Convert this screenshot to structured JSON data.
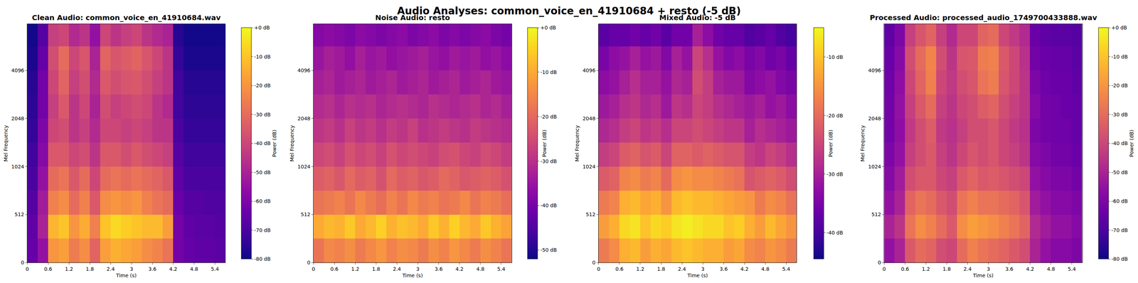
{
  "title": "Audio Analyses: common_voice_en_41910684 + resto (-5 dB)",
  "chart_data": [
    {
      "type": "heatmap",
      "title": "Clean Audio: common_voice_en_41910684.wav",
      "x_label": "Time (s)",
      "y_label": "Mel Frequency",
      "x": [
        0.15,
        0.45,
        0.75,
        1.05,
        1.35,
        1.65,
        1.95,
        2.25,
        2.55,
        2.85,
        3.15,
        3.45,
        3.75,
        4.05,
        4.35,
        4.65,
        4.95,
        5.25,
        5.55
      ],
      "y": [
        128,
        384,
        609,
        861,
        1218,
        1722,
        2435,
        3444,
        4871,
        6889
      ],
      "cells": [
        [
          -65,
          -55,
          -20,
          -18,
          -26,
          -22,
          -32,
          -18,
          -14,
          -16,
          -18,
          -22,
          -24,
          -28,
          -62,
          -65,
          -66,
          -66,
          -67
        ],
        [
          -66,
          -50,
          -13,
          -10,
          -20,
          -15,
          -25,
          -10,
          -6,
          -8,
          -10,
          -12,
          -12,
          -18,
          -62,
          -66,
          -67,
          -67,
          -68
        ],
        [
          -68,
          -52,
          -25,
          -22,
          -30,
          -25,
          -35,
          -22,
          -20,
          -22,
          -20,
          -25,
          -28,
          -30,
          -64,
          -68,
          -68,
          -69,
          -69
        ],
        [
          -70,
          -55,
          -30,
          -28,
          -35,
          -30,
          -40,
          -30,
          -28,
          -30,
          -28,
          -30,
          -32,
          -35,
          -66,
          -70,
          -70,
          -70,
          -70
        ],
        [
          -72,
          -58,
          -35,
          -35,
          -40,
          -38,
          -45,
          -35,
          -35,
          -38,
          -35,
          -38,
          -40,
          -42,
          -68,
          -72,
          -72,
          -72,
          -72
        ],
        [
          -74,
          -60,
          -40,
          -38,
          -45,
          -42,
          -48,
          -40,
          -40,
          -42,
          -40,
          -42,
          -45,
          -45,
          -70,
          -74,
          -74,
          -74,
          -74
        ],
        [
          -75,
          -62,
          -42,
          -35,
          -45,
          -40,
          -50,
          -38,
          -42,
          -40,
          -38,
          -40,
          -45,
          -48,
          -72,
          -75,
          -75,
          -75,
          -75
        ],
        [
          -76,
          -62,
          -40,
          -32,
          -42,
          -38,
          -48,
          -35,
          -38,
          -36,
          -35,
          -38,
          -42,
          -45,
          -72,
          -76,
          -76,
          -76,
          -76
        ],
        [
          -78,
          -65,
          -38,
          -30,
          -40,
          -36,
          -50,
          -32,
          -36,
          -34,
          -32,
          -36,
          -40,
          -45,
          -74,
          -78,
          -78,
          -78,
          -78
        ],
        [
          -79,
          -68,
          -42,
          -40,
          -48,
          -45,
          -55,
          -40,
          -45,
          -42,
          -40,
          -45,
          -48,
          -50,
          -76,
          -79,
          -79,
          -79,
          -79
        ]
      ],
      "xlim": [
        0,
        5.7
      ],
      "xticks": [
        0,
        0.6,
        1.2,
        1.8,
        2.4,
        3,
        3.6,
        4.2,
        4.8,
        5.4
      ],
      "ylim": [
        0,
        8000
      ],
      "yticks": [
        0,
        512,
        1024,
        2048,
        4096
      ],
      "colorbar": {
        "title": "Power (dB)",
        "range": [
          -80,
          0
        ],
        "ticks": [
          {
            "value": 0,
            "label": "+0 dB"
          },
          {
            "value": -10,
            "label": "-10 dB"
          },
          {
            "value": -20,
            "label": "-20 dB"
          },
          {
            "value": -30,
            "label": "-30 dB"
          },
          {
            "value": -40,
            "label": "-40 dB"
          },
          {
            "value": -50,
            "label": "-50 dB"
          },
          {
            "value": -60,
            "label": "-60 dB"
          },
          {
            "value": -70,
            "label": "-70 dB"
          },
          {
            "value": -80,
            "label": "-80 dB"
          }
        ]
      }
    },
    {
      "type": "heatmap",
      "title": "Noise Audio: resto",
      "x_label": "Time (s)",
      "y_label": "Mel Frequency",
      "x": [
        0.15,
        0.45,
        0.75,
        1.05,
        1.35,
        1.65,
        1.95,
        2.25,
        2.55,
        2.85,
        3.15,
        3.45,
        3.75,
        4.05,
        4.35,
        4.65,
        4.95,
        5.25,
        5.55
      ],
      "y": [
        128,
        384,
        609,
        861,
        1218,
        1722,
        2435,
        3444,
        4871,
        6889
      ],
      "cells": [
        [
          -18,
          -15,
          -16,
          -14,
          -17,
          -15,
          -13,
          -16,
          -14,
          -15,
          -17,
          -14,
          -16,
          -13,
          -15,
          -17,
          -14,
          -16,
          -18
        ],
        [
          -10,
          -8,
          -9,
          -6,
          -10,
          -8,
          -5,
          -9,
          -7,
          -8,
          -10,
          -6,
          -9,
          -5,
          -8,
          -10,
          -6,
          -9,
          -11
        ],
        [
          -18,
          -17,
          -16,
          -18,
          -15,
          -17,
          -19,
          -16,
          -18,
          -15,
          -17,
          -16,
          -18,
          -17,
          -15,
          -18,
          -16,
          -17,
          -19
        ],
        [
          -22,
          -21,
          -23,
          -20,
          -22,
          -21,
          -24,
          -20,
          -22,
          -21,
          -23,
          -22,
          -20,
          -21,
          -23,
          -22,
          -21,
          -22,
          -24
        ],
        [
          -26,
          -25,
          -27,
          -24,
          -26,
          -25,
          -27,
          -24,
          -26,
          -25,
          -26,
          -27,
          -25,
          -24,
          -26,
          -27,
          -25,
          -26,
          -28
        ],
        [
          -29,
          -28,
          -30,
          -27,
          -29,
          -28,
          -30,
          -28,
          -29,
          -27,
          -30,
          -29,
          -28,
          -29,
          -30,
          -28,
          -29,
          -30,
          -31
        ],
        [
          -31,
          -30,
          -32,
          -30,
          -31,
          -30,
          -32,
          -31,
          -30,
          -31,
          -32,
          -30,
          -31,
          -32,
          -31,
          -30,
          -32,
          -31,
          -33
        ],
        [
          -33,
          -32,
          -34,
          -33,
          -32,
          -34,
          -33,
          -32,
          -34,
          -33,
          -32,
          -34,
          -33,
          -32,
          -34,
          -33,
          -32,
          -34,
          -35
        ],
        [
          -35,
          -33,
          -34,
          -36,
          -33,
          -35,
          -34,
          -36,
          -35,
          -34,
          -33,
          -35,
          -36,
          -34,
          -35,
          -34,
          -36,
          -35,
          -37
        ],
        [
          -38,
          -37,
          -38,
          -39,
          -37,
          -38,
          -39,
          -38,
          -37,
          -39,
          -38,
          -37,
          -39,
          -38,
          -39,
          -38,
          -37,
          -39,
          -40
        ]
      ],
      "xlim": [
        0,
        5.7
      ],
      "xticks": [
        0,
        0.6,
        1.2,
        1.8,
        2.4,
        3,
        3.6,
        4.2,
        4.8,
        5.4
      ],
      "ylim": [
        0,
        8000
      ],
      "yticks": [
        0,
        512,
        1024,
        2048,
        4096
      ],
      "colorbar": {
        "title": "Power (dB)",
        "range": [
          -52,
          0
        ],
        "ticks": [
          {
            "value": 0,
            "label": "+0 dB"
          },
          {
            "value": -10,
            "label": "-10 dB"
          },
          {
            "value": -20,
            "label": "-20 dB"
          },
          {
            "value": -30,
            "label": "-30 dB"
          },
          {
            "value": -40,
            "label": "-40 dB"
          },
          {
            "value": -50,
            "label": "-50 dB"
          }
        ]
      }
    },
    {
      "type": "heatmap",
      "title": "Mixed Audio: -5 dB",
      "x_label": "Time (s)",
      "y_label": "Mel Frequency",
      "x": [
        0.15,
        0.45,
        0.75,
        1.05,
        1.35,
        1.65,
        1.95,
        2.25,
        2.55,
        2.85,
        3.15,
        3.45,
        3.75,
        4.05,
        4.35,
        4.65,
        4.95,
        5.25,
        5.55
      ],
      "y": [
        128,
        384,
        609,
        861,
        1218,
        1722,
        2435,
        3444,
        4871,
        6889
      ],
      "cells": [
        [
          -18,
          -16,
          -12,
          -11,
          -14,
          -12,
          -13,
          -11,
          -10,
          -11,
          -12,
          -12,
          -14,
          -13,
          -16,
          -17,
          -15,
          -16,
          -18
        ],
        [
          -14,
          -12,
          -8,
          -7,
          -10,
          -8,
          -9,
          -7,
          -6,
          -7,
          -8,
          -8,
          -10,
          -9,
          -12,
          -14,
          -11,
          -13,
          -15
        ],
        [
          -18,
          -17,
          -12,
          -11,
          -13,
          -12,
          -15,
          -11,
          -10,
          -11,
          -11,
          -12,
          -13,
          -14,
          -15,
          -18,
          -16,
          -17,
          -19
        ],
        [
          -22,
          -21,
          -17,
          -16,
          -18,
          -17,
          -20,
          -16,
          -15,
          -16,
          -16,
          -17,
          -18,
          -19,
          -23,
          -22,
          -21,
          -22,
          -24
        ],
        [
          -26,
          -25,
          -22,
          -21,
          -23,
          -22,
          -25,
          -21,
          -21,
          -22,
          -21,
          -22,
          -23,
          -23,
          -26,
          -27,
          -25,
          -26,
          -28
        ],
        [
          -29,
          -28,
          -26,
          -25,
          -27,
          -26,
          -28,
          -25,
          -25,
          -24,
          -25,
          -26,
          -27,
          -27,
          -30,
          -28,
          -29,
          -30,
          -31
        ],
        [
          -31,
          -30,
          -28,
          -27,
          -29,
          -28,
          -31,
          -27,
          -28,
          -25,
          -26,
          -28,
          -29,
          -30,
          -31,
          -30,
          -32,
          -31,
          -33
        ],
        [
          -33,
          -32,
          -30,
          -28,
          -30,
          -30,
          -32,
          -29,
          -30,
          -24,
          -26,
          -30,
          -31,
          -31,
          -34,
          -33,
          -32,
          -34,
          -35
        ],
        [
          -35,
          -33,
          -32,
          -30,
          -32,
          -31,
          -34,
          -30,
          -32,
          -25,
          -28,
          -32,
          -34,
          -33,
          -35,
          -34,
          -36,
          -35,
          -37
        ],
        [
          -38,
          -37,
          -37,
          -36,
          -37,
          -36,
          -38,
          -36,
          -36,
          -30,
          -33,
          -36,
          -37,
          -37,
          -39,
          -38,
          -37,
          -39,
          -40
        ]
      ],
      "xlim": [
        0,
        5.7
      ],
      "xticks": [
        0,
        0.6,
        1.2,
        1.8,
        2.4,
        3,
        3.6,
        4.2,
        4.8,
        5.4
      ],
      "ylim": [
        0,
        8000
      ],
      "yticks": [
        0,
        512,
        1024,
        2048,
        4096
      ],
      "colorbar": {
        "title": "Power (dB)",
        "range": [
          -44.5,
          -5
        ],
        "ticks": [
          {
            "value": -10,
            "label": "-10 dB"
          },
          {
            "value": -20,
            "label": "-20 dB"
          },
          {
            "value": -30,
            "label": "-30 dB"
          },
          {
            "value": -40,
            "label": "-40 dB"
          }
        ]
      }
    },
    {
      "type": "heatmap",
      "title": "Processed Audio: processed_audio_1749700433888.wav",
      "x_label": "Time (s)",
      "y_label": "Mel Frequency",
      "x": [
        0.15,
        0.45,
        0.75,
        1.05,
        1.35,
        1.65,
        1.95,
        2.25,
        2.55,
        2.85,
        3.15,
        3.45,
        3.75,
        4.05,
        4.35,
        4.65,
        4.95,
        5.25,
        5.55
      ],
      "y": [
        128,
        384,
        609,
        861,
        1218,
        1722,
        2435,
        3444,
        4871,
        6889
      ],
      "cells": [
        [
          -55,
          -50,
          -35,
          -30,
          -32,
          -38,
          -40,
          -30,
          -25,
          -28,
          -30,
          -32,
          -35,
          -38,
          -50,
          -55,
          -58,
          -58,
          -60
        ],
        [
          -50,
          -45,
          -28,
          -22,
          -25,
          -30,
          -35,
          -22,
          -18,
          -20,
          -22,
          -25,
          -28,
          -32,
          -48,
          -52,
          -55,
          -55,
          -58
        ],
        [
          -55,
          -50,
          -32,
          -28,
          -30,
          -35,
          -38,
          -28,
          -25,
          -28,
          -28,
          -30,
          -32,
          -36,
          -52,
          -55,
          -58,
          -58,
          -60
        ],
        [
          -58,
          -52,
          -38,
          -35,
          -35,
          -40,
          -42,
          -35,
          -32,
          -35,
          -34,
          -36,
          -38,
          -40,
          -55,
          -58,
          -60,
          -60,
          -62
        ],
        [
          -60,
          -55,
          -42,
          -38,
          -35,
          -42,
          -45,
          -40,
          -36,
          -38,
          -36,
          -40,
          -42,
          -45,
          -58,
          -60,
          -62,
          -62,
          -64
        ],
        [
          -62,
          -56,
          -44,
          -38,
          -34,
          -44,
          -46,
          -42,
          -38,
          -38,
          -36,
          -40,
          -44,
          -46,
          -60,
          -62,
          -63,
          -63,
          -65
        ],
        [
          -62,
          -55,
          -42,
          -35,
          -30,
          -42,
          -45,
          -40,
          -38,
          -34,
          -32,
          -38,
          -42,
          -45,
          -58,
          -62,
          -63,
          -64,
          -65
        ],
        [
          -63,
          -56,
          -40,
          -32,
          -25,
          -40,
          -44,
          -38,
          -36,
          -28,
          -26,
          -36,
          -40,
          -45,
          -60,
          -63,
          -64,
          -64,
          -66
        ],
        [
          -64,
          -58,
          -38,
          -30,
          -24,
          -38,
          -45,
          -36,
          -35,
          -26,
          -25,
          -35,
          -40,
          -46,
          -62,
          -64,
          -65,
          -65,
          -67
        ],
        [
          -66,
          -60,
          -42,
          -36,
          -32,
          -42,
          -48,
          -40,
          -40,
          -32,
          -30,
          -40,
          -44,
          -48,
          -64,
          -66,
          -67,
          -67,
          -68
        ]
      ],
      "xlim": [
        0,
        5.7
      ],
      "xticks": [
        0,
        0.6,
        1.2,
        1.8,
        2.4,
        3,
        3.6,
        4.2,
        4.8,
        5.4
      ],
      "ylim": [
        0,
        8000
      ],
      "yticks": [
        0,
        512,
        1024,
        2048,
        4096
      ],
      "colorbar": {
        "title": "Power (dB)",
        "range": [
          -80,
          0
        ],
        "ticks": [
          {
            "value": 0,
            "label": "+0 dB"
          },
          {
            "value": -10,
            "label": "-10 dB"
          },
          {
            "value": -20,
            "label": "-20 dB"
          },
          {
            "value": -30,
            "label": "-30 dB"
          },
          {
            "value": -40,
            "label": "-40 dB"
          },
          {
            "value": -50,
            "label": "-50 dB"
          },
          {
            "value": -60,
            "label": "-60 dB"
          },
          {
            "value": -70,
            "label": "-70 dB"
          },
          {
            "value": -80,
            "label": "-80 dB"
          }
        ]
      }
    }
  ]
}
